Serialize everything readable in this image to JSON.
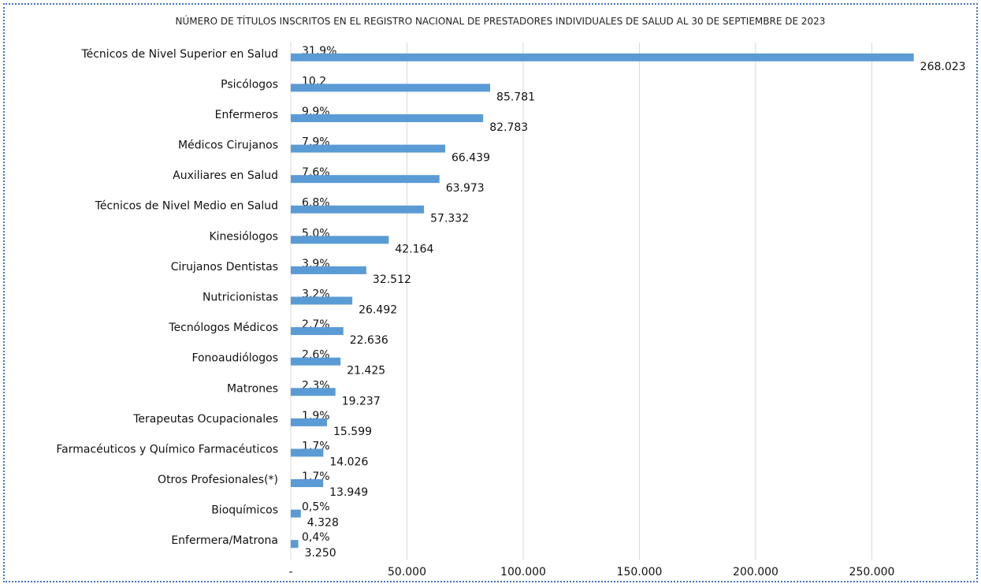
{
  "chart_data": {
    "type": "bar",
    "orientation": "horizontal",
    "title": "NÚMERO DE TÍTULOS INSCRITOS EN EL REGISTRO NACIONAL DE PRESTADORES INDIVIDUALES DE SALUD AL 30  DE SEPTIEMBRE DE 2023",
    "categories": [
      "Técnicos de Nivel Superior en Salud",
      "Psicólogos",
      "Enfermeros",
      "Médicos Cirujanos",
      "Auxiliares en Salud",
      "Técnicos de Nivel Medio en Salud",
      "Kinesiólogos",
      "Cirujanos Dentistas",
      "Nutricionistas",
      "Tecnólogos Médicos",
      "Fonoaudiólogos",
      "Matrones",
      "Terapeutas Ocupacionales",
      "Farmacéuticos y Químico Farmacéuticos",
      "Otros Profesionales(*)",
      "Bioquímicos",
      "Enfermera/Matrona"
    ],
    "values": [
      268023,
      85781,
      82783,
      66439,
      63973,
      57332,
      42164,
      32512,
      26492,
      22636,
      21425,
      19237,
      15599,
      14026,
      13949,
      4328,
      3250
    ],
    "value_labels": [
      "268.023",
      "85.781",
      "82.783",
      "66.439",
      "63.973",
      "57.332",
      "42.164",
      "32.512",
      "26.492",
      "22.636",
      "21.425",
      "19.237",
      "15.599",
      "14.026",
      "13.949",
      "4.328",
      "3.250"
    ],
    "share_labels": [
      "31,9%",
      "10,2",
      "9,9%",
      "7,9%",
      "7,6%",
      "6,8%",
      "5,0%",
      "3,9%",
      "3,2%",
      "2,7%",
      "2,6%",
      "2,3%",
      "1,9%",
      "1,7%",
      "1,7%",
      "0,5%",
      "0,4%"
    ],
    "color": "#5b9bd5",
    "xlim": [
      0,
      290000
    ],
    "xticks": [
      {
        "value": 0,
        "label": "-"
      },
      {
        "value": 50000,
        "label": "50.000"
      },
      {
        "value": 100000,
        "label": "100.000"
      },
      {
        "value": 150000,
        "label": "150.000"
      },
      {
        "value": 200000,
        "label": "200.000"
      },
      {
        "value": 250000,
        "label": "250.000"
      }
    ],
    "grid": true
  }
}
